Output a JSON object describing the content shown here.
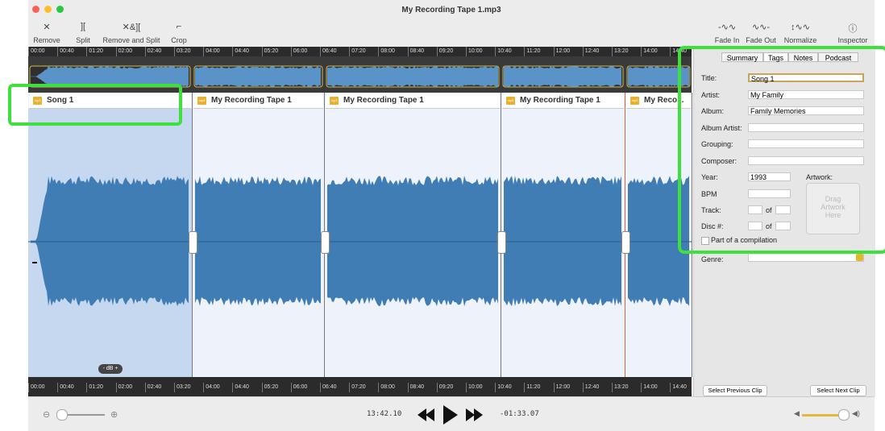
{
  "window": {
    "title": "My Recording Tape 1.mp3"
  },
  "toolbar": {
    "left": [
      "Remove",
      "Split",
      "Remove and Split",
      "Crop"
    ],
    "right": [
      "Fade In",
      "Fade Out",
      "Normalize",
      "Inspector"
    ]
  },
  "ruler": {
    "ticks": [
      "00:00",
      "00:40",
      "01:20",
      "02:00",
      "02:40",
      "03:20",
      "04:00",
      "04:40",
      "05:20",
      "06:00",
      "06:40",
      "07:20",
      "08:00",
      "08:40",
      "09:20",
      "10:00",
      "10:40",
      "11:20",
      "12:00",
      "12:40",
      "13:20",
      "14:00",
      "14:40"
    ]
  },
  "clips": [
    {
      "name": "Song 1"
    },
    {
      "name": "My Recording Tape 1"
    },
    {
      "name": "My Recording Tape 1"
    },
    {
      "name": "My Recording Tape 1"
    },
    {
      "name": "My Reco..."
    }
  ],
  "db_control": "- dB +",
  "transport": {
    "elapsed": "13:42.10",
    "remaining": "-01:33.07"
  },
  "inspector": {
    "tabs": [
      "Summary",
      "Tags",
      "Notes",
      "Podcast"
    ],
    "fields": [
      {
        "label": "Title:",
        "value": "Song 1"
      },
      {
        "label": "Artist:",
        "value": "My Family"
      },
      {
        "label": "Album:",
        "value": "Family Memories"
      },
      {
        "label": "Album Artist:"
      },
      {
        "label": "Grouping:"
      },
      {
        "label": "Composer:"
      },
      {
        "label": "Year:",
        "value": "1993"
      },
      {
        "label": "BPM"
      },
      {
        "label": "Track:",
        "of": "of"
      },
      {
        "label": "Disc #:",
        "of": "of"
      }
    ],
    "artwork_label": "Artwork:",
    "artwork_placeholder": "Drag Artwork Here",
    "compilation": "Part of a compilation",
    "genre_label": "Genre:",
    "buttons": [
      "Select Previous Clip",
      "Select Next Clip"
    ]
  }
}
